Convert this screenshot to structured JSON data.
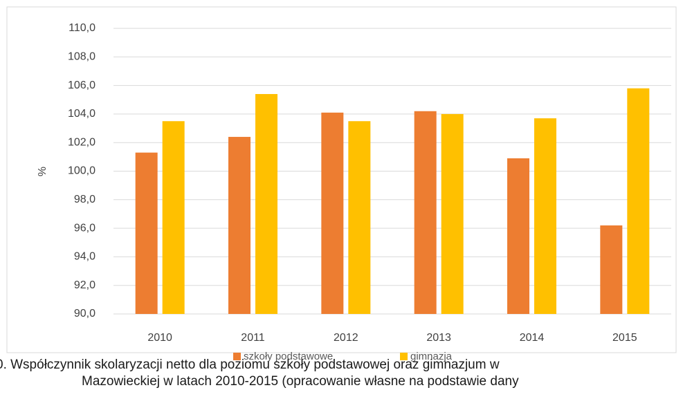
{
  "chart_data": {
    "type": "bar",
    "y_label": "%",
    "categories": [
      "2010",
      "2011",
      "2012",
      "2013",
      "2014",
      "2015"
    ],
    "series": [
      {
        "name": "szkoły podstawowe",
        "color": "#ed7d31",
        "values": [
          101.3,
          102.4,
          104.1,
          104.2,
          100.9,
          96.2
        ]
      },
      {
        "name": "gimnazja",
        "color": "#ffc000",
        "values": [
          103.5,
          105.4,
          103.5,
          104.0,
          103.7,
          105.8
        ]
      }
    ],
    "ylim": [
      90,
      110
    ],
    "yticks": [
      {
        "value": 90,
        "label": "90,0"
      },
      {
        "value": 92,
        "label": "92,0"
      },
      {
        "value": 94,
        "label": "94,0"
      },
      {
        "value": 96,
        "label": "96,0"
      },
      {
        "value": 98,
        "label": "98,0"
      },
      {
        "value": 100,
        "label": "100,0"
      },
      {
        "value": 102,
        "label": "102,0"
      },
      {
        "value": 104,
        "label": "104,0"
      },
      {
        "value": 106,
        "label": "106,0"
      },
      {
        "value": 108,
        "label": "108,0"
      },
      {
        "value": 110,
        "label": "110,0"
      }
    ],
    "grid": true,
    "legend": "bottom",
    "caption": [
      "0. Współczynnik skolaryzacji netto dla poziomu szkoły podstawowej oraz gimnazjum w",
      "Mazowieckiej w latach 2010-2015 (opracowanie własne na podstawie dany"
    ]
  }
}
